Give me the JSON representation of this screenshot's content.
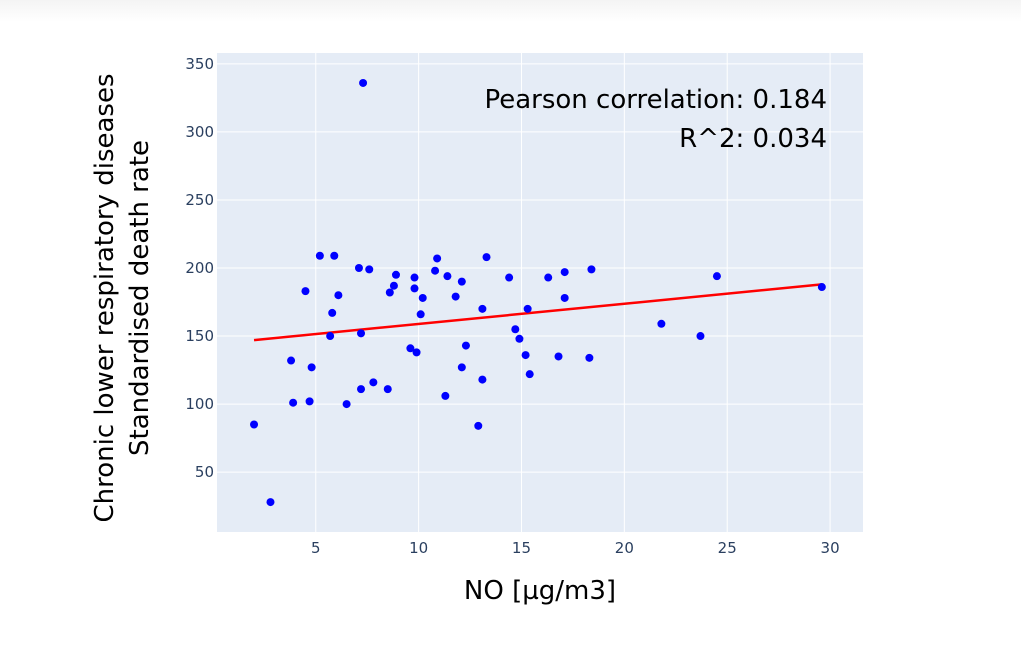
{
  "chart_data": {
    "type": "scatter",
    "xlabel": "NO [µg/m3]",
    "ylabel_lines": [
      "Chronic lower respiratory diseases",
      "Standardised death rate"
    ],
    "xlim": [
      0.2,
      31.6
    ],
    "ylim": [
      6,
      358
    ],
    "xticks": [
      5,
      10,
      15,
      20,
      25,
      30
    ],
    "yticks": [
      50,
      100,
      150,
      200,
      250,
      300,
      350
    ],
    "grid": true,
    "annotations": [
      "Pearson correlation: 0.184",
      "R^2: 0.034"
    ],
    "colors": {
      "points": "#0000ff",
      "fit": "#ff0000",
      "plot_bg": "#e5ecf6",
      "grid": "#ffffff",
      "tick_text": "#2a3f5f"
    },
    "points": [
      {
        "x": 2.0,
        "y": 85
      },
      {
        "x": 2.8,
        "y": 28
      },
      {
        "x": 3.8,
        "y": 132
      },
      {
        "x": 3.9,
        "y": 101
      },
      {
        "x": 4.5,
        "y": 183
      },
      {
        "x": 4.7,
        "y": 102
      },
      {
        "x": 4.8,
        "y": 127
      },
      {
        "x": 5.2,
        "y": 209
      },
      {
        "x": 5.7,
        "y": 150
      },
      {
        "x": 5.8,
        "y": 167
      },
      {
        "x": 5.9,
        "y": 209
      },
      {
        "x": 6.1,
        "y": 180
      },
      {
        "x": 6.5,
        "y": 100
      },
      {
        "x": 7.1,
        "y": 200
      },
      {
        "x": 7.2,
        "y": 152
      },
      {
        "x": 7.2,
        "y": 111
      },
      {
        "x": 7.3,
        "y": 336
      },
      {
        "x": 7.6,
        "y": 199
      },
      {
        "x": 7.8,
        "y": 116
      },
      {
        "x": 8.5,
        "y": 111
      },
      {
        "x": 8.6,
        "y": 182
      },
      {
        "x": 8.8,
        "y": 187
      },
      {
        "x": 8.9,
        "y": 195
      },
      {
        "x": 9.6,
        "y": 141
      },
      {
        "x": 9.8,
        "y": 193
      },
      {
        "x": 9.8,
        "y": 185
      },
      {
        "x": 9.9,
        "y": 138
      },
      {
        "x": 10.1,
        "y": 166
      },
      {
        "x": 10.2,
        "y": 178
      },
      {
        "x": 10.8,
        "y": 198
      },
      {
        "x": 10.9,
        "y": 207
      },
      {
        "x": 11.3,
        "y": 106
      },
      {
        "x": 11.4,
        "y": 194
      },
      {
        "x": 11.8,
        "y": 179
      },
      {
        "x": 12.1,
        "y": 190
      },
      {
        "x": 12.1,
        "y": 127
      },
      {
        "x": 12.3,
        "y": 143
      },
      {
        "x": 12.9,
        "y": 84
      },
      {
        "x": 13.1,
        "y": 170
      },
      {
        "x": 13.1,
        "y": 118
      },
      {
        "x": 13.3,
        "y": 208
      },
      {
        "x": 14.4,
        "y": 193
      },
      {
        "x": 14.7,
        "y": 155
      },
      {
        "x": 14.9,
        "y": 148
      },
      {
        "x": 15.2,
        "y": 136
      },
      {
        "x": 15.3,
        "y": 170
      },
      {
        "x": 15.4,
        "y": 122
      },
      {
        "x": 16.3,
        "y": 193
      },
      {
        "x": 16.8,
        "y": 135
      },
      {
        "x": 17.1,
        "y": 197
      },
      {
        "x": 17.1,
        "y": 178
      },
      {
        "x": 18.3,
        "y": 134
      },
      {
        "x": 18.4,
        "y": 199
      },
      {
        "x": 21.8,
        "y": 159
      },
      {
        "x": 23.7,
        "y": 150
      },
      {
        "x": 24.5,
        "y": 194
      },
      {
        "x": 29.6,
        "y": 186
      }
    ],
    "fit_line": {
      "x": [
        2.0,
        29.6
      ],
      "y": [
        147,
        188
      ]
    }
  }
}
